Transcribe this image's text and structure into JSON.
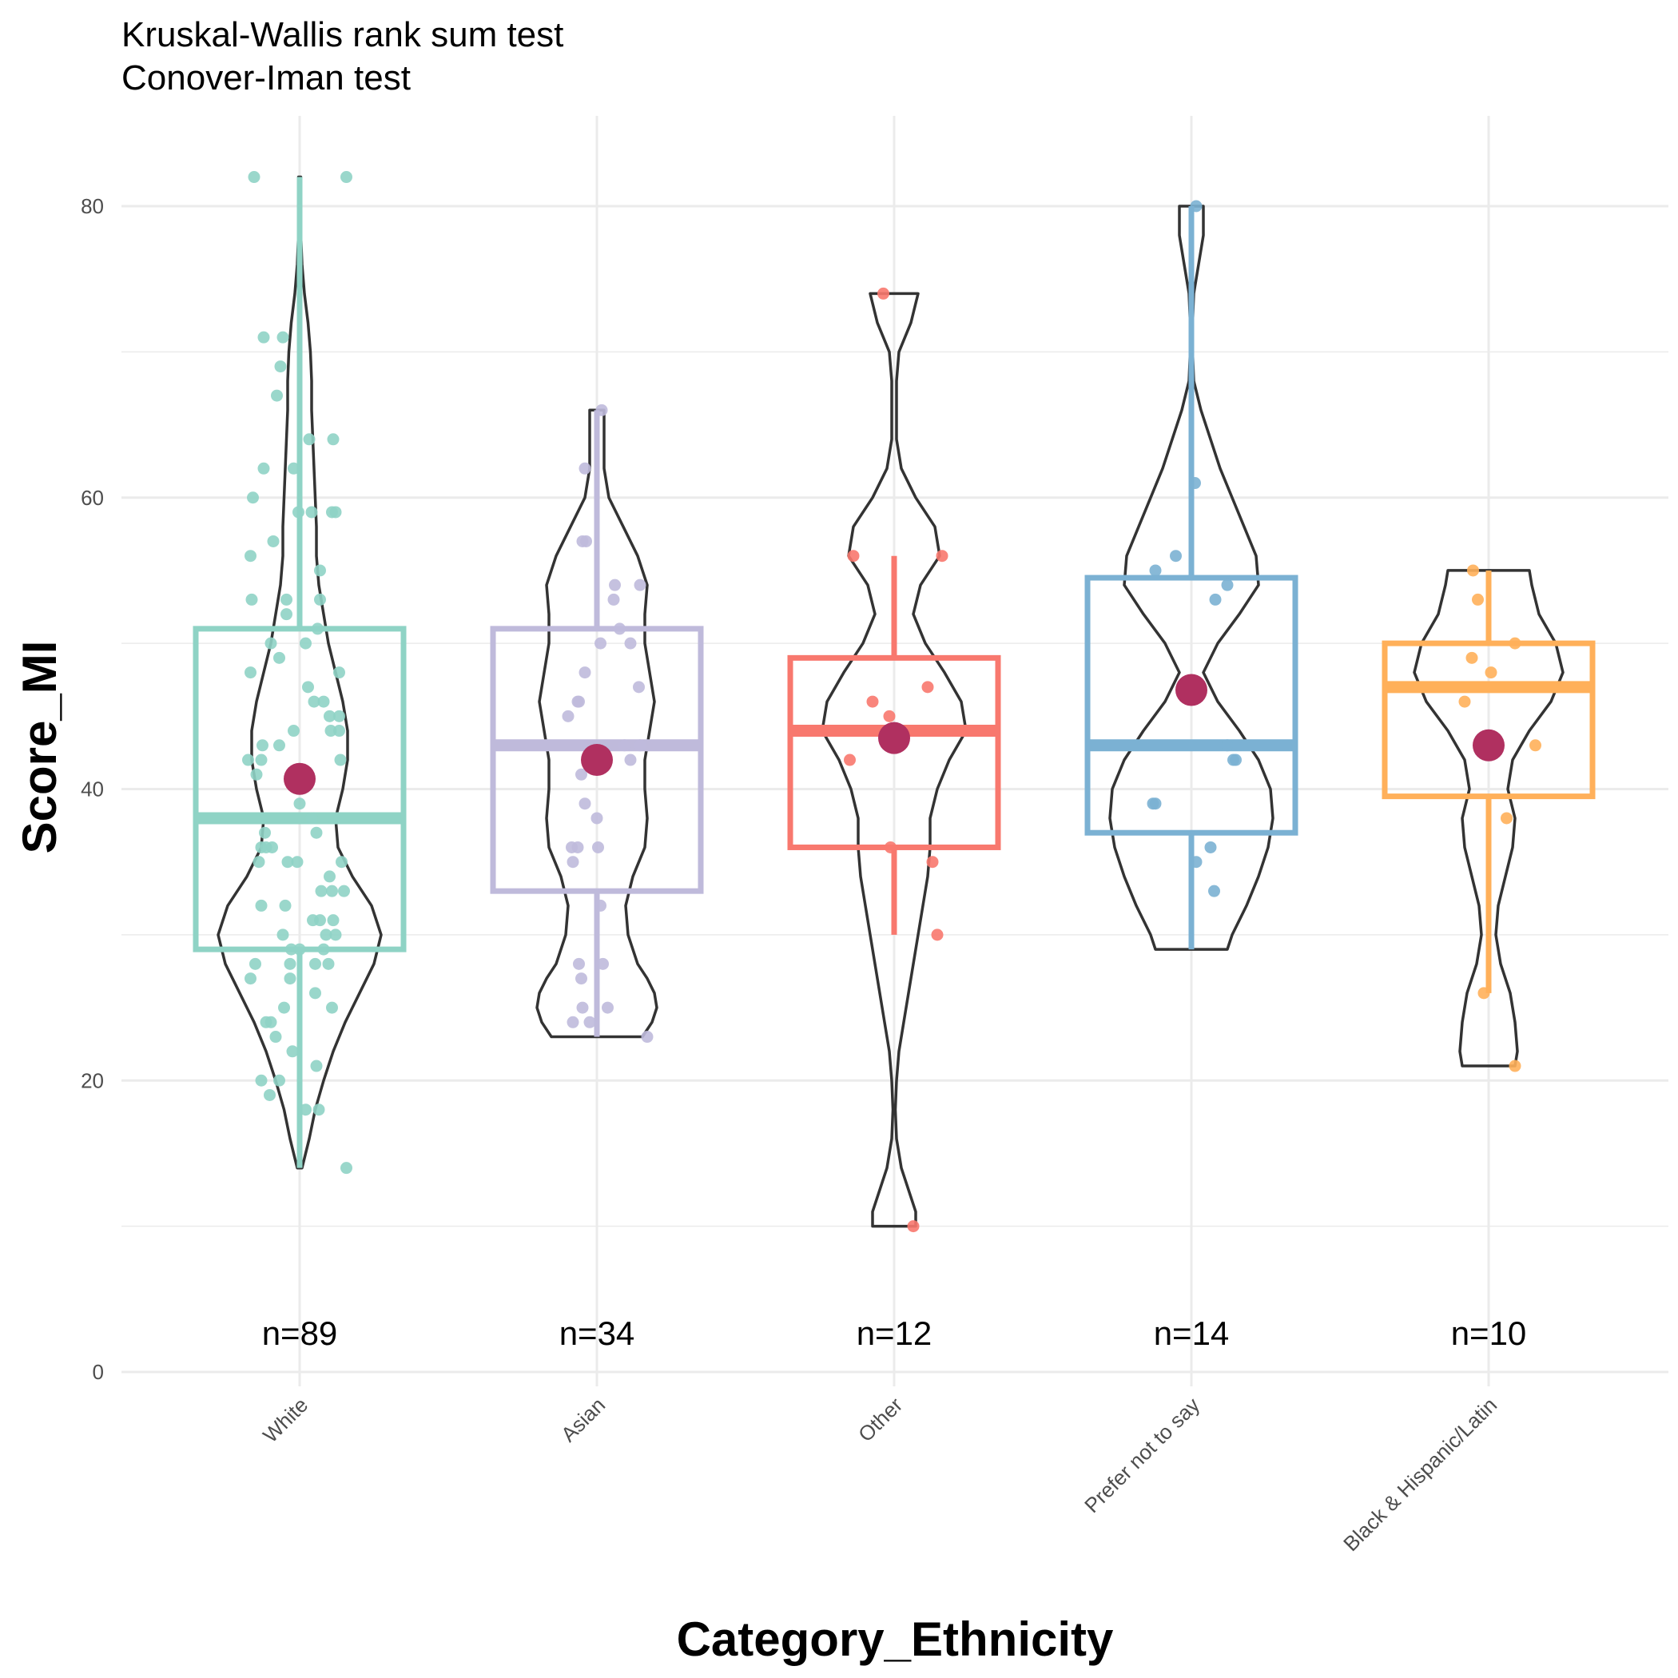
{
  "chart_data": {
    "type": "violin-box",
    "subtitles": [
      "Kruskal-Wallis rank sum test",
      "Conover-Iman test"
    ],
    "xlabel": "Category_Ethnicity",
    "ylabel": "Score_MI",
    "ylim": [
      0,
      85
    ],
    "yticks": [
      0,
      20,
      40,
      60,
      80
    ],
    "grid": true,
    "mean_color": "#b03060",
    "violin_color": "#333333",
    "groups": [
      {
        "label": "White",
        "n_label": "n=89",
        "color": "#8fd3c5",
        "box": {
          "q1": 29,
          "median": 38,
          "q3": 51,
          "lower": 14,
          "upper": 82
        },
        "mean": 40.7,
        "violin": [
          [
            14,
            0.02
          ],
          [
            16,
            0.08
          ],
          [
            18,
            0.13
          ],
          [
            20,
            0.2
          ],
          [
            22,
            0.28
          ],
          [
            24,
            0.38
          ],
          [
            26,
            0.5
          ],
          [
            28,
            0.62
          ],
          [
            30,
            0.68
          ],
          [
            32,
            0.6
          ],
          [
            34,
            0.44
          ],
          [
            36,
            0.32
          ],
          [
            38,
            0.3
          ],
          [
            40,
            0.36
          ],
          [
            42,
            0.4
          ],
          [
            44,
            0.4
          ],
          [
            46,
            0.36
          ],
          [
            48,
            0.3
          ],
          [
            50,
            0.24
          ],
          [
            52,
            0.2
          ],
          [
            54,
            0.16
          ],
          [
            56,
            0.14
          ],
          [
            58,
            0.14
          ],
          [
            60,
            0.13
          ],
          [
            62,
            0.12
          ],
          [
            64,
            0.11
          ],
          [
            66,
            0.1
          ],
          [
            68,
            0.1
          ],
          [
            70,
            0.09
          ],
          [
            72,
            0.07
          ],
          [
            74,
            0.04
          ],
          [
            76,
            0.02
          ],
          [
            78,
            0.01
          ],
          [
            80,
            0.01
          ],
          [
            82,
            0.01
          ]
        ],
        "points": [
          [
            -0.38,
            82
          ],
          [
            0.39,
            82
          ],
          [
            -0.3,
            71
          ],
          [
            -0.14,
            71
          ],
          [
            -0.16,
            69
          ],
          [
            -0.19,
            67
          ],
          [
            0.28,
            64
          ],
          [
            0.08,
            64
          ],
          [
            -0.3,
            62
          ],
          [
            -0.05,
            62
          ],
          [
            -0.39,
            60
          ],
          [
            -0.01,
            59
          ],
          [
            0.1,
            59
          ],
          [
            0.27,
            59
          ],
          [
            0.3,
            59
          ],
          [
            -0.22,
            57
          ],
          [
            0.17,
            55
          ],
          [
            -0.41,
            56
          ],
          [
            -0.4,
            53
          ],
          [
            -0.11,
            53
          ],
          [
            0.17,
            53
          ],
          [
            -0.11,
            52
          ],
          [
            -0.24,
            50
          ],
          [
            0.15,
            51
          ],
          [
            0.05,
            50
          ],
          [
            -0.17,
            49
          ],
          [
            0.33,
            48
          ],
          [
            -0.41,
            48
          ],
          [
            0.07,
            47
          ],
          [
            0.12,
            46
          ],
          [
            0.25,
            45
          ],
          [
            0.33,
            45
          ],
          [
            0.26,
            44
          ],
          [
            0.33,
            44
          ],
          [
            -0.17,
            43
          ],
          [
            -0.31,
            43
          ],
          [
            -0.32,
            42
          ],
          [
            0.34,
            42
          ],
          [
            -0.43,
            42
          ],
          [
            -0.36,
            41
          ],
          [
            0.0,
            39
          ],
          [
            -0.29,
            37
          ],
          [
            0.14,
            37
          ],
          [
            -0.32,
            36
          ],
          [
            -0.23,
            36
          ],
          [
            -0.34,
            35
          ],
          [
            -0.1,
            35
          ],
          [
            -0.02,
            35
          ],
          [
            0.35,
            35
          ],
          [
            0.37,
            33
          ],
          [
            0.18,
            33
          ],
          [
            0.27,
            33
          ],
          [
            -0.32,
            32
          ],
          [
            -0.12,
            32
          ],
          [
            0.11,
            31
          ],
          [
            0.17,
            31
          ],
          [
            0.28,
            31
          ],
          [
            -0.14,
            30
          ],
          [
            0.22,
            30
          ],
          [
            0.3,
            30
          ],
          [
            0.2,
            29
          ],
          [
            -0.07,
            29
          ],
          [
            0.0,
            29
          ],
          [
            -0.37,
            28
          ],
          [
            -0.08,
            28
          ],
          [
            0.13,
            28
          ],
          [
            0.24,
            28
          ],
          [
            -0.08,
            27
          ],
          [
            -0.41,
            27
          ],
          [
            -0.13,
            25
          ],
          [
            0.27,
            25
          ],
          [
            -0.28,
            24
          ],
          [
            -0.24,
            24
          ],
          [
            -0.2,
            23
          ],
          [
            -0.06,
            22
          ],
          [
            0.13,
            26
          ],
          [
            0.14,
            21
          ],
          [
            -0.32,
            20
          ],
          [
            -0.17,
            20
          ],
          [
            -0.25,
            19
          ],
          [
            0.05,
            18
          ],
          [
            0.16,
            18
          ],
          [
            0.39,
            14
          ],
          [
            -0.28,
            36
          ],
          [
            0.1,
            38
          ],
          [
            0.0,
            41
          ],
          [
            -0.05,
            44
          ],
          [
            0.2,
            46
          ],
          [
            0.25,
            34
          ]
        ]
      },
      {
        "label": "Asian",
        "n_label": "n=34",
        "color": "#bfbadb",
        "box": {
          "q1": 33,
          "median": 43,
          "q3": 51,
          "lower": 23,
          "upper": 66
        },
        "mean": 42,
        "violin": [
          [
            23,
            0.38
          ],
          [
            24,
            0.46
          ],
          [
            25,
            0.5
          ],
          [
            26,
            0.48
          ],
          [
            27,
            0.42
          ],
          [
            28,
            0.34
          ],
          [
            30,
            0.26
          ],
          [
            32,
            0.24
          ],
          [
            34,
            0.3
          ],
          [
            36,
            0.4
          ],
          [
            38,
            0.42
          ],
          [
            40,
            0.4
          ],
          [
            42,
            0.4
          ],
          [
            44,
            0.44
          ],
          [
            46,
            0.48
          ],
          [
            48,
            0.44
          ],
          [
            50,
            0.4
          ],
          [
            52,
            0.4
          ],
          [
            54,
            0.42
          ],
          [
            56,
            0.34
          ],
          [
            58,
            0.22
          ],
          [
            60,
            0.1
          ],
          [
            62,
            0.06
          ],
          [
            64,
            0.06
          ],
          [
            66,
            0.06
          ]
        ],
        "points": [
          [
            0.04,
            66
          ],
          [
            -0.1,
            62
          ],
          [
            -0.09,
            57
          ],
          [
            -0.12,
            57
          ],
          [
            0.15,
            54
          ],
          [
            0.14,
            53
          ],
          [
            0.36,
            54
          ],
          [
            0.19,
            51
          ],
          [
            0.28,
            50
          ],
          [
            0.03,
            50
          ],
          [
            -0.1,
            48
          ],
          [
            -0.16,
            46
          ],
          [
            -0.24,
            45
          ],
          [
            -0.15,
            46
          ],
          [
            0.35,
            47
          ],
          [
            0.23,
            43
          ],
          [
            0.36,
            43
          ],
          [
            0.28,
            42
          ],
          [
            -0.13,
            41
          ],
          [
            -0.1,
            39
          ],
          [
            0.0,
            38
          ],
          [
            -0.16,
            36
          ],
          [
            0.01,
            36
          ],
          [
            -0.21,
            36
          ],
          [
            -0.2,
            35
          ],
          [
            0.03,
            32
          ],
          [
            -0.15,
            28
          ],
          [
            -0.13,
            27
          ],
          [
            0.05,
            28
          ],
          [
            -0.12,
            25
          ],
          [
            0.09,
            25
          ],
          [
            -0.06,
            24
          ],
          [
            -0.2,
            24
          ],
          [
            0.42,
            23
          ]
        ]
      },
      {
        "label": "Other",
        "n_label": "n=12",
        "color": "#f8786e",
        "box": {
          "q1": 36,
          "median": 44,
          "q3": 49,
          "lower": 30,
          "upper": 56
        },
        "mean": 43.5,
        "violin": [
          [
            10,
            0.18
          ],
          [
            11,
            0.18
          ],
          [
            12,
            0.14
          ],
          [
            14,
            0.06
          ],
          [
            16,
            0.02
          ],
          [
            18,
            0.01
          ],
          [
            20,
            0.02
          ],
          [
            22,
            0.04
          ],
          [
            24,
            0.08
          ],
          [
            26,
            0.12
          ],
          [
            28,
            0.16
          ],
          [
            30,
            0.2
          ],
          [
            32,
            0.24
          ],
          [
            34,
            0.28
          ],
          [
            36,
            0.3
          ],
          [
            38,
            0.3
          ],
          [
            40,
            0.36
          ],
          [
            42,
            0.46
          ],
          [
            44,
            0.6
          ],
          [
            46,
            0.56
          ],
          [
            48,
            0.42
          ],
          [
            50,
            0.26
          ],
          [
            52,
            0.16
          ],
          [
            54,
            0.22
          ],
          [
            56,
            0.38
          ],
          [
            58,
            0.34
          ],
          [
            60,
            0.18
          ],
          [
            62,
            0.06
          ],
          [
            64,
            0.02
          ],
          [
            66,
            0.02
          ],
          [
            68,
            0.02
          ],
          [
            70,
            0.04
          ],
          [
            72,
            0.14
          ],
          [
            74,
            0.2
          ]
        ],
        "points": [
          [
            -0.09,
            74
          ],
          [
            -0.34,
            56
          ],
          [
            0.4,
            56
          ],
          [
            0.28,
            47
          ],
          [
            -0.18,
            46
          ],
          [
            -0.04,
            45
          ],
          [
            -0.05,
            43
          ],
          [
            -0.37,
            42
          ],
          [
            -0.03,
            36
          ],
          [
            0.32,
            35
          ],
          [
            0.36,
            30
          ],
          [
            0.16,
            10
          ]
        ]
      },
      {
        "label": "Prefer not to say",
        "n_label": "n=14",
        "color": "#7bb1d3",
        "box": {
          "q1": 37,
          "median": 43,
          "q3": 54.5,
          "lower": 29,
          "upper": 80
        },
        "mean": 46.8,
        "violin": [
          [
            29,
            0.3
          ],
          [
            30,
            0.34
          ],
          [
            32,
            0.46
          ],
          [
            34,
            0.56
          ],
          [
            36,
            0.64
          ],
          [
            38,
            0.68
          ],
          [
            40,
            0.66
          ],
          [
            42,
            0.56
          ],
          [
            44,
            0.4
          ],
          [
            46,
            0.22
          ],
          [
            48,
            0.1
          ],
          [
            50,
            0.22
          ],
          [
            52,
            0.4
          ],
          [
            54,
            0.56
          ],
          [
            56,
            0.54
          ],
          [
            58,
            0.44
          ],
          [
            60,
            0.34
          ],
          [
            62,
            0.24
          ],
          [
            64,
            0.16
          ],
          [
            66,
            0.08
          ],
          [
            68,
            0.02
          ],
          [
            70,
            0.01
          ],
          [
            72,
            0.01
          ],
          [
            74,
            0.02
          ],
          [
            76,
            0.06
          ],
          [
            78,
            0.1
          ],
          [
            80,
            0.1
          ]
        ],
        "points": [
          [
            0.04,
            80
          ],
          [
            0.03,
            61
          ],
          [
            -0.13,
            56
          ],
          [
            -0.3,
            55
          ],
          [
            0.2,
            53
          ],
          [
            0.3,
            54
          ],
          [
            0.3,
            43
          ],
          [
            0.35,
            42
          ],
          [
            0.37,
            42
          ],
          [
            -0.32,
            39
          ],
          [
            -0.3,
            39
          ],
          [
            0.16,
            36
          ],
          [
            0.04,
            35
          ],
          [
            0.19,
            33
          ]
        ]
      },
      {
        "label": "Black & Hispanic/Latin",
        "n_label": "n=10",
        "color": "#ffb05a",
        "box": {
          "q1": 39.5,
          "median": 47,
          "q3": 50,
          "lower": 26,
          "upper": 55
        },
        "mean": 43,
        "violin": [
          [
            21,
            0.22
          ],
          [
            22,
            0.24
          ],
          [
            24,
            0.22
          ],
          [
            26,
            0.18
          ],
          [
            28,
            0.1
          ],
          [
            30,
            0.06
          ],
          [
            32,
            0.08
          ],
          [
            34,
            0.14
          ],
          [
            36,
            0.2
          ],
          [
            38,
            0.22
          ],
          [
            40,
            0.16
          ],
          [
            42,
            0.2
          ],
          [
            44,
            0.34
          ],
          [
            46,
            0.52
          ],
          [
            48,
            0.62
          ],
          [
            50,
            0.56
          ],
          [
            52,
            0.42
          ],
          [
            54,
            0.36
          ],
          [
            55,
            0.34
          ]
        ],
        "points": [
          [
            -0.13,
            55
          ],
          [
            -0.09,
            53
          ],
          [
            -0.14,
            49
          ],
          [
            0.02,
            48
          ],
          [
            0.22,
            50
          ],
          [
            -0.2,
            46
          ],
          [
            0.39,
            43
          ],
          [
            0.15,
            38
          ],
          [
            -0.04,
            26
          ],
          [
            0.22,
            21
          ]
        ]
      }
    ]
  }
}
